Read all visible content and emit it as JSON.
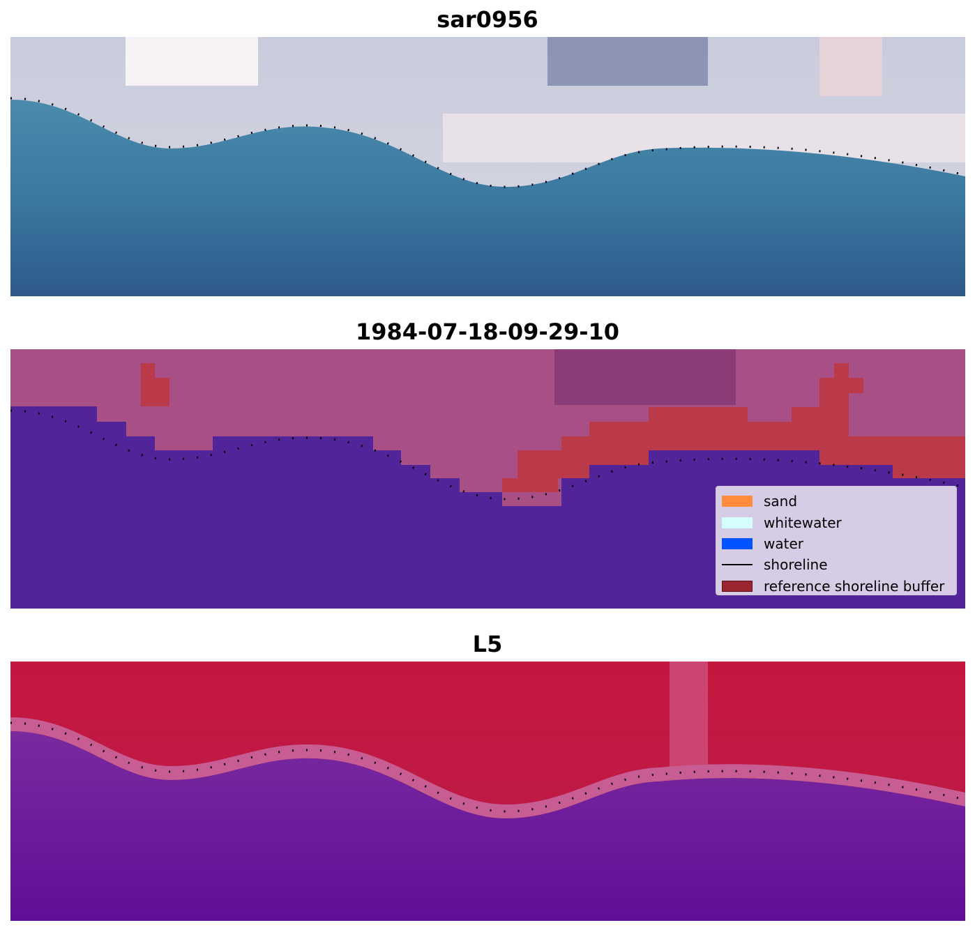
{
  "panels": [
    {
      "title": "sar0956"
    },
    {
      "title": "1984-07-18-09-29-10"
    },
    {
      "title": "L5"
    }
  ],
  "legend": {
    "items": [
      {
        "label": "sand",
        "color": "#ff8c3c"
      },
      {
        "label": "whitewater",
        "color": "#d4fdfd"
      },
      {
        "label": "water",
        "color": "#0055ff"
      },
      {
        "label": "shoreline",
        "color": "#000000",
        "kind": "line"
      },
      {
        "label": "reference shoreline buffer",
        "color": "#9b2530"
      }
    ]
  },
  "colors": {
    "ocean_top": "#3f85a6",
    "ocean_bottom": "#2f5b8c",
    "sky_light": "#e9e4ec",
    "class_water": "#51249a",
    "class_land": "#a84f86",
    "class_buffer": "#ba3a4a",
    "index_land": "#bf1f45",
    "index_water": "#66169a",
    "index_transition": "#c75d93"
  }
}
